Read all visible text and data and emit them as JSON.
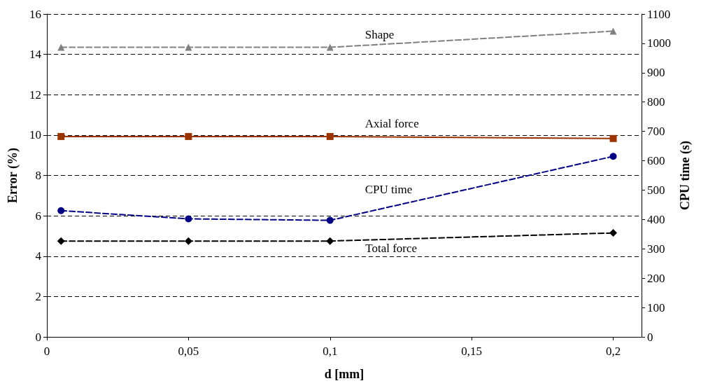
{
  "chart_data": {
    "type": "line",
    "xlabel": "d [mm]",
    "ylabel": "Error (%)",
    "y2label": "CPU time (s)",
    "x": [
      0.005,
      0.05,
      0.1,
      0.2
    ],
    "xlim": [
      0,
      0.21
    ],
    "xticks": [
      0,
      {
        "value": 0.05,
        "label": "0,05"
      },
      {
        "value": 0.1,
        "label": "0,1"
      },
      {
        "value": 0.15,
        "label": "0,15"
      },
      {
        "value": 0.2,
        "label": "0,2"
      }
    ],
    "ylim": [
      0,
      16
    ],
    "yticks": [
      0,
      2,
      4,
      6,
      8,
      10,
      12,
      14,
      16
    ],
    "y2lim": [
      0,
      1100
    ],
    "y2ticks": [
      0,
      100,
      200,
      300,
      400,
      500,
      600,
      700,
      800,
      900,
      1000,
      1100
    ],
    "grid": "y",
    "series": [
      {
        "name": "Shape",
        "color": "#808080",
        "values": [
          14.35,
          14.35,
          14.35,
          15.15
        ],
        "marker": "triangle",
        "line_style": "dashed"
      },
      {
        "name": "Axial force",
        "color": "#993300",
        "values": [
          9.93,
          9.93,
          9.93,
          9.83
        ],
        "marker": "square",
        "line_style": "solid"
      },
      {
        "name": "CPU time",
        "color": "#000080",
        "values": [
          430,
          402,
          397,
          615
        ],
        "marker": "circle",
        "line_style": "dashed",
        "axis": "y2"
      },
      {
        "name": "Total force",
        "color": "#000000",
        "values": [
          4.75,
          4.75,
          4.75,
          5.15
        ],
        "marker": "diamond",
        "line_style": "dashed"
      }
    ]
  }
}
